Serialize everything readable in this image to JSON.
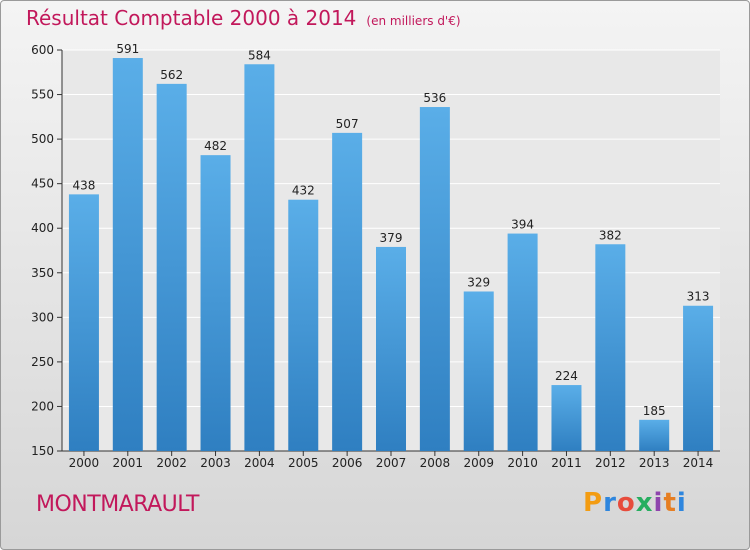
{
  "chart_data": {
    "type": "bar",
    "title": "Résultat Comptable 2000 à 2014",
    "subtitle": "(en milliers d'€)",
    "categories": [
      "2000",
      "2001",
      "2002",
      "2003",
      "2004",
      "2005",
      "2006",
      "2007",
      "2008",
      "2009",
      "2010",
      "2011",
      "2012",
      "2013",
      "2014"
    ],
    "values": [
      438,
      591,
      562,
      482,
      584,
      432,
      507,
      379,
      536,
      329,
      394,
      224,
      382,
      185,
      313
    ],
    "ylim": [
      150,
      600
    ],
    "yticks": [
      150,
      200,
      250,
      300,
      350,
      400,
      450,
      500,
      550,
      600
    ],
    "grid": true,
    "bar_color_top": "#5aaee8",
    "bar_color_bottom": "#2f7fc1"
  },
  "footer": {
    "commune": "MONTMARAULT",
    "logo_text": "Proxiti"
  },
  "colors": {
    "title": "#c2185b",
    "logo": [
      "#f39c12",
      "#2e86de",
      "#e74c3c",
      "#27ae60",
      "#8e44ad",
      "#e67e22",
      "#2e86de"
    ]
  }
}
